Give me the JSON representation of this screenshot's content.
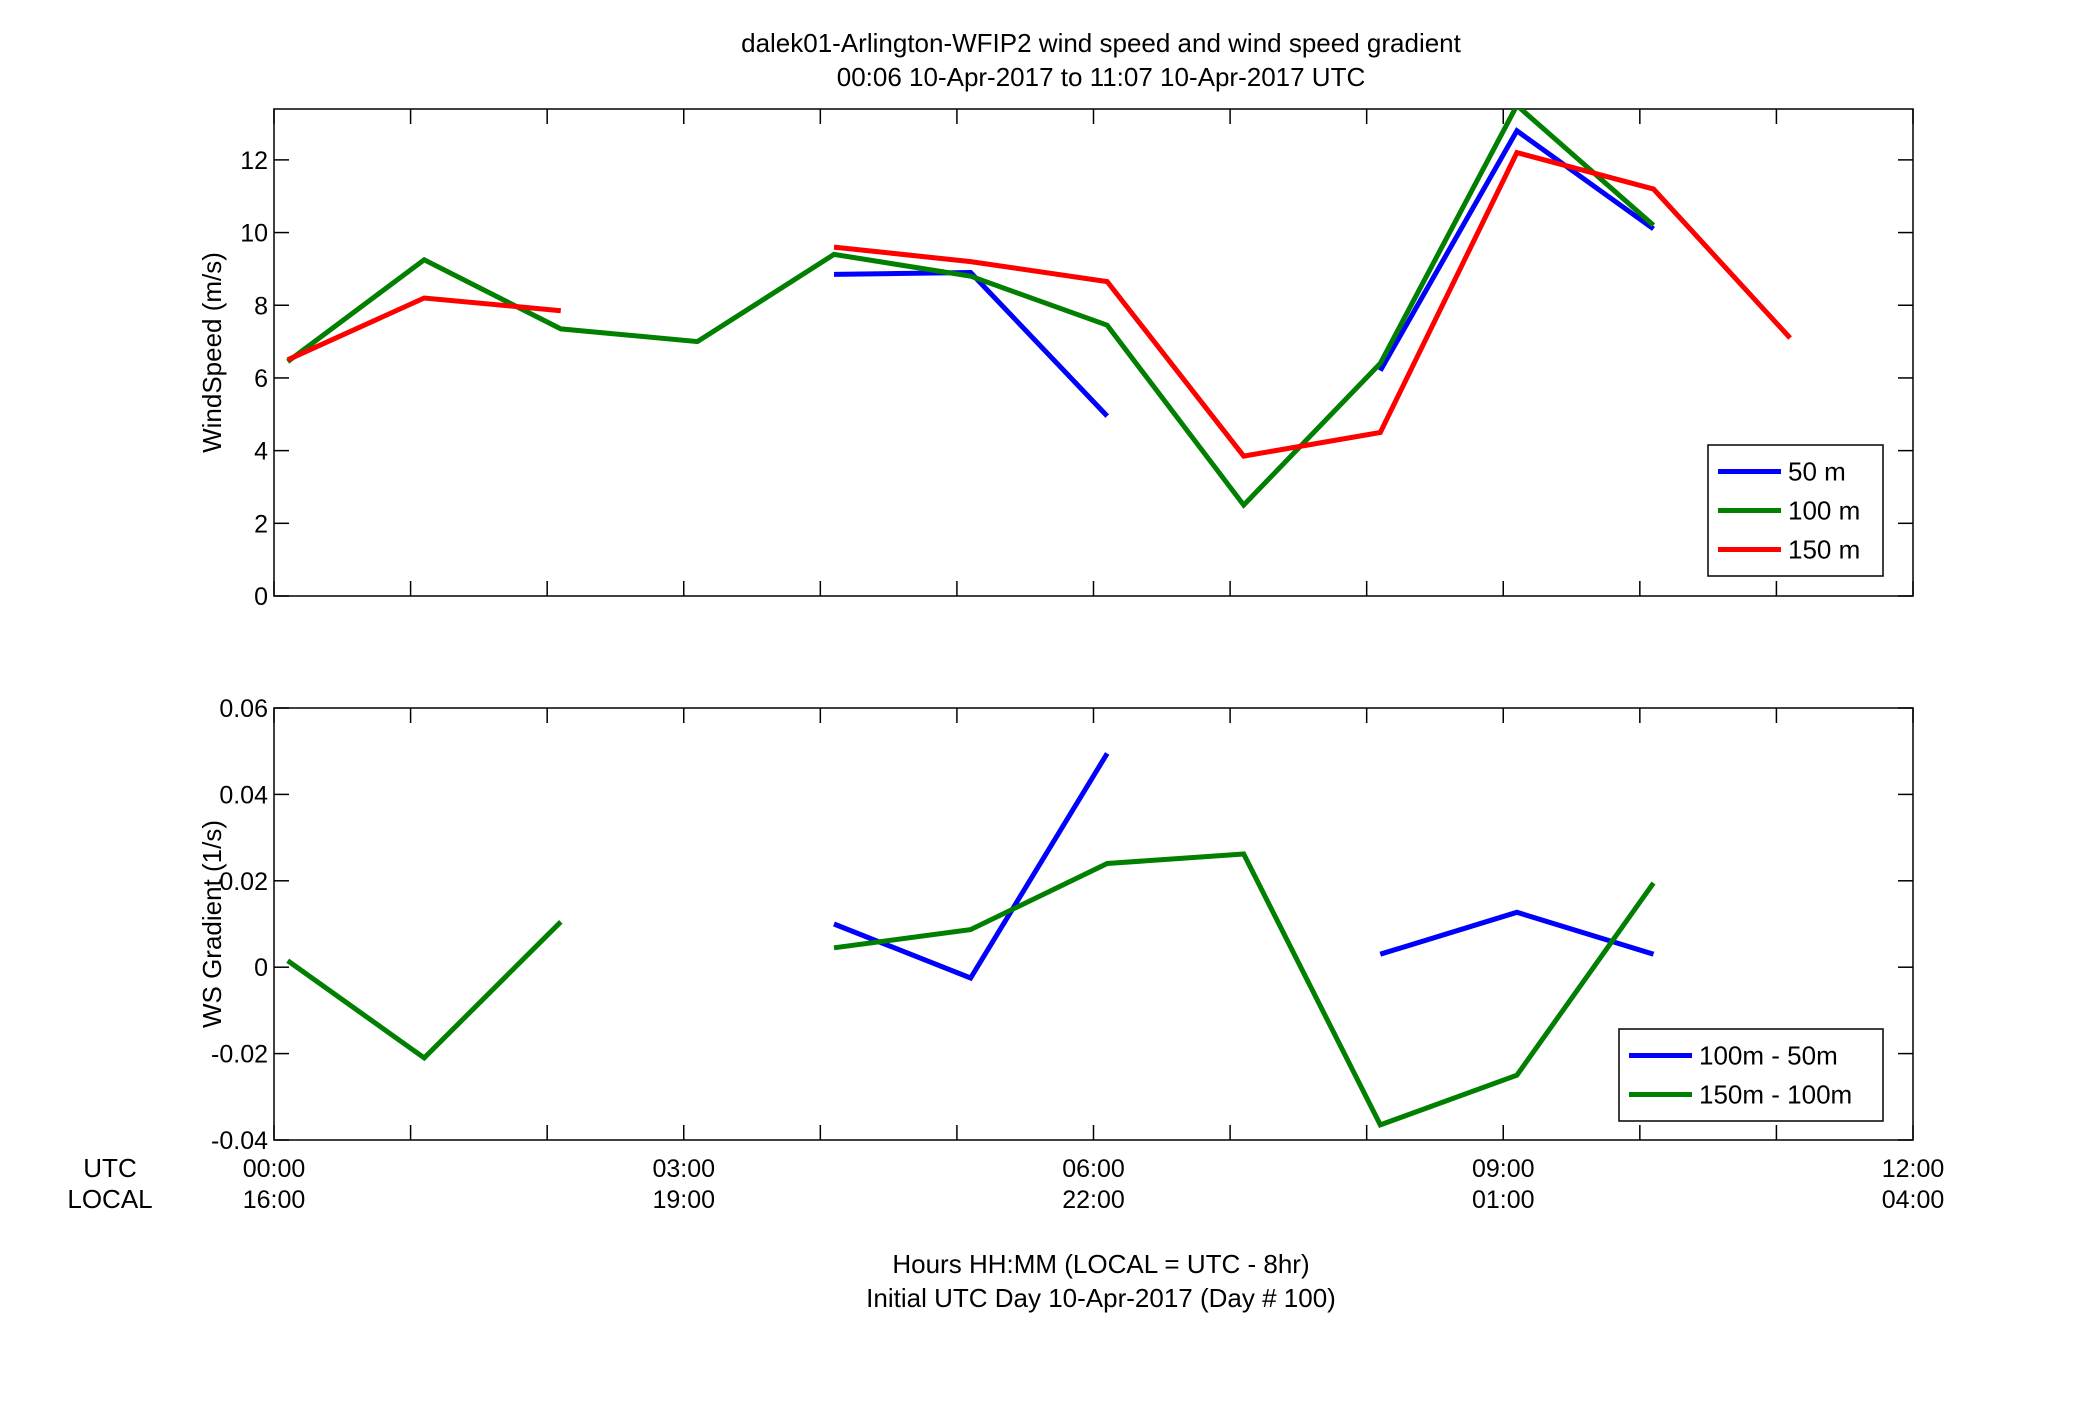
{
  "figure": {
    "title_line1": "dalek01-Arlington-WFIP2  wind speed and wind speed gradient",
    "title_line2": "00:06 10-Apr-2017 to 11:07 10-Apr-2017  UTC",
    "xlabel_line1": "Hours HH:MM  (LOCAL = UTC - 8hr)",
    "xlabel_line2": "Initial UTC Day 10-Apr-2017 (Day # 100)",
    "utc_row_label": "UTC",
    "local_row_label": "LOCAL",
    "x_ticks_utc": [
      "00:00",
      "03:00",
      "06:00",
      "09:00",
      "12:00"
    ],
    "x_ticks_local": [
      "16:00",
      "19:00",
      "22:00",
      "01:00",
      "04:00"
    ]
  },
  "chart_data": [
    {
      "type": "line",
      "title": "",
      "xlabel": "",
      "ylabel": "WindSpeed (m/s)",
      "xlim": [
        0,
        12
      ],
      "ylim": [
        0,
        13.4
      ],
      "x_unit": "hours UTC",
      "yticks": [
        0,
        2,
        4,
        6,
        8,
        10,
        12
      ],
      "legend_position": "bottom-right",
      "series": [
        {
          "name": "50 m",
          "color": "#0000ff",
          "points": [
            [
              [
                4.1,
                8.85
              ],
              [
                5.1,
                8.9
              ],
              [
                6.1,
                4.95
              ]
            ],
            [
              [
                8.1,
                6.2
              ],
              [
                9.1,
                12.8
              ],
              [
                10.1,
                10.1
              ]
            ]
          ]
        },
        {
          "name": "100 m",
          "color": "#007f00",
          "points": [
            [
              [
                0.1,
                6.45
              ],
              [
                1.1,
                9.25
              ],
              [
                2.1,
                7.35
              ],
              [
                3.1,
                7.0
              ],
              [
                4.1,
                9.4
              ],
              [
                5.1,
                8.8
              ],
              [
                6.1,
                7.45
              ],
              [
                7.1,
                2.5
              ],
              [
                8.1,
                6.4
              ],
              [
                9.1,
                13.5
              ],
              [
                10.1,
                10.2
              ]
            ]
          ]
        },
        {
          "name": "150 m",
          "color": "#ff0000",
          "points": [
            [
              [
                0.1,
                6.5
              ],
              [
                1.1,
                8.2
              ],
              [
                2.1,
                7.85
              ]
            ],
            [
              [
                4.1,
                9.6
              ],
              [
                5.1,
                9.2
              ],
              [
                6.1,
                8.65
              ],
              [
                7.1,
                3.85
              ],
              [
                8.1,
                4.5
              ],
              [
                9.1,
                12.2
              ],
              [
                10.1,
                11.2
              ],
              [
                11.1,
                7.1
              ]
            ]
          ]
        }
      ]
    },
    {
      "type": "line",
      "title": "",
      "xlabel": "",
      "ylabel": "WS Gradient (1/s)",
      "xlim": [
        0,
        12
      ],
      "ylim": [
        -0.04,
        0.06
      ],
      "x_unit": "hours UTC",
      "yticks": [
        -0.04,
        -0.02,
        0,
        0.02,
        0.04,
        0.06
      ],
      "ytick_labels": [
        "-0.04",
        "-0.02",
        "0",
        "0.02",
        "0.04",
        "0.06"
      ],
      "legend_position": "bottom-right",
      "series": [
        {
          "name": "100m - 50m",
          "color": "#0000ff",
          "points": [
            [
              [
                4.1,
                0.01
              ],
              [
                5.1,
                -0.0025
              ],
              [
                6.1,
                0.0495
              ]
            ],
            [
              [
                8.1,
                0.003
              ],
              [
                9.1,
                0.0127
              ],
              [
                10.1,
                0.003
              ]
            ]
          ]
        },
        {
          "name": "150m - 100m",
          "color": "#007f00",
          "points": [
            [
              [
                0.1,
                0.0015
              ],
              [
                1.1,
                -0.021
              ],
              [
                2.1,
                0.0105
              ]
            ],
            [
              [
                4.1,
                0.0045
              ],
              [
                5.1,
                0.0087
              ],
              [
                6.1,
                0.024
              ],
              [
                7.1,
                0.0262
              ],
              [
                8.1,
                -0.0365
              ],
              [
                9.1,
                -0.025
              ],
              [
                10.1,
                0.0195
              ]
            ]
          ]
        }
      ]
    }
  ]
}
